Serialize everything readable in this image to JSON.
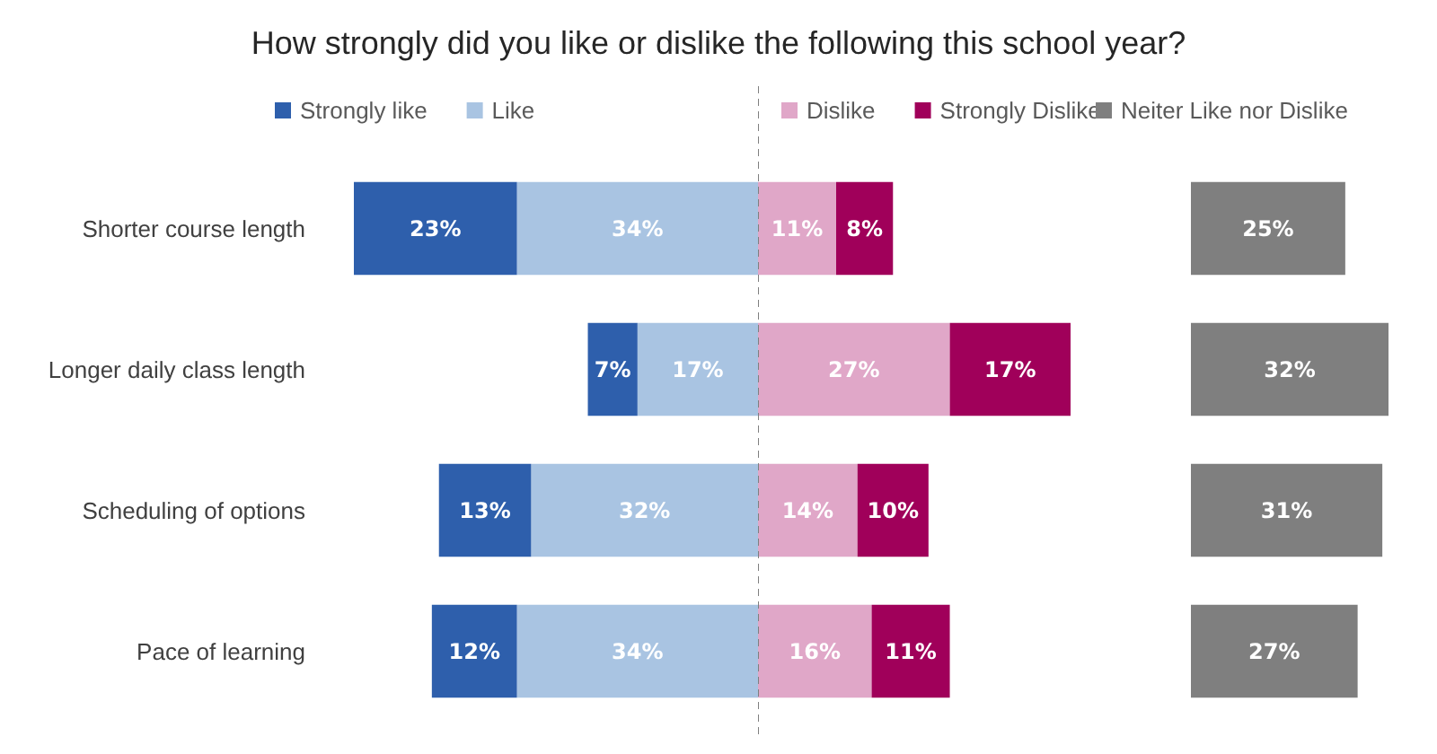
{
  "chart_data": [
    {
      "type": "bar",
      "title": "How strongly did you like or dislike the following this school year?",
      "orientation": "horizontal",
      "stacked": true,
      "legend": "top",
      "tick_labels": "y",
      "xlim": [
        57,
        0
      ],
      "categories": [
        "Shorter course length",
        "Longer daily class length",
        "Scheduling of options",
        "Pace of learning"
      ],
      "series": [
        {
          "name": "Like",
          "color": "#a9c4e2",
          "values": [
            34,
            17,
            32,
            34
          ],
          "value_labels": [
            "34%",
            "17%",
            "32%",
            "34%"
          ]
        },
        {
          "name": "Strongly like",
          "color": "#2e5fac",
          "values": [
            23,
            7,
            13,
            12
          ],
          "value_labels": [
            "23%",
            "7%",
            "13%",
            "12%"
          ]
        }
      ]
    },
    {
      "type": "bar",
      "orientation": "horizontal",
      "stacked": true,
      "legend": "top",
      "tick_labels": false,
      "categories": [
        null,
        null,
        null,
        null
      ],
      "series": [
        {
          "name": "Dislike",
          "color": "#e0a7c8",
          "values": [
            11,
            27,
            14,
            16
          ],
          "value_labels": [
            "11%",
            "27%",
            "14%",
            "16%"
          ]
        },
        {
          "name": "Strongly Dislike",
          "color": "#a0005a",
          "values": [
            8,
            17,
            10,
            11
          ],
          "value_labels": [
            "8%",
            "17%",
            "10%",
            "11%"
          ]
        }
      ],
      "ref_lines": [
        {
          "axis": "x",
          "value": 0,
          "line_style": "dashed",
          "color": "#7f7f7f"
        }
      ]
    },
    {
      "type": "bar",
      "orientation": "horizontal",
      "legend": "top",
      "tick_labels": false,
      "categories": [
        null,
        null,
        null,
        null
      ],
      "series": [
        {
          "name": "Neiter Like nor Dislike",
          "color": "#7f7f7f",
          "values": [
            25,
            32,
            31,
            27
          ],
          "value_labels": [
            "25%",
            "32%",
            "31%",
            "27%"
          ]
        }
      ]
    }
  ]
}
